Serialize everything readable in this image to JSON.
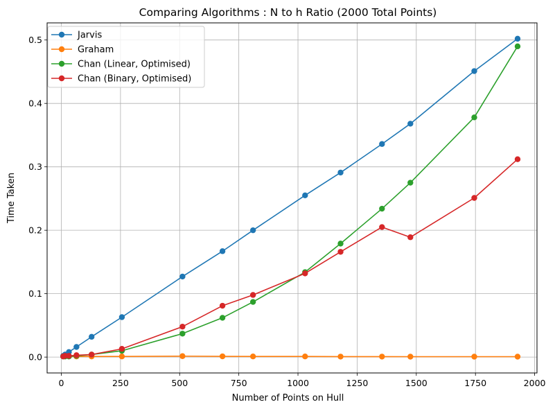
{
  "chart_data": {
    "type": "line",
    "title": "Comparing Algorithms : N to h Ratio (2000 Total Points)",
    "xlabel": "Number of Points on Hull",
    "ylabel": "Time Taken",
    "xlim": [
      -60,
      2010
    ],
    "ylim": [
      -0.025,
      0.527
    ],
    "xticks": [
      0,
      250,
      500,
      750,
      1000,
      1250,
      1500,
      1750,
      2000
    ],
    "yticks": [
      0.0,
      0.1,
      0.2,
      0.3,
      0.4,
      0.5
    ],
    "xtick_labels": [
      "0",
      "250",
      "500",
      "750",
      "1000",
      "1250",
      "1500",
      "1750",
      "2000"
    ],
    "ytick_labels": [
      "0.0",
      "0.1",
      "0.2",
      "0.3",
      "0.4",
      "0.5"
    ],
    "grid": true,
    "legend_position": "top-left",
    "x": [
      8,
      16,
      32,
      64,
      128,
      256,
      512,
      681,
      810,
      1030,
      1180,
      1355,
      1475,
      1745,
      1928
    ],
    "series": [
      {
        "name": "Jarvis",
        "color": "#1f77b4",
        "values": [
          0.002,
          0.004,
          0.008,
          0.016,
          0.032,
          0.063,
          0.127,
          0.167,
          0.2,
          0.255,
          0.291,
          0.336,
          0.368,
          0.451,
          0.502
        ]
      },
      {
        "name": "Graham",
        "color": "#ff7f0e",
        "values": [
          0.001,
          0.001,
          0.001,
          0.001,
          0.001,
          0.001,
          0.0015,
          0.0012,
          0.001,
          0.001,
          0.0008,
          0.0008,
          0.0007,
          0.0007,
          0.0007
        ]
      },
      {
        "name": "Chan (Linear, Optimised)",
        "color": "#2ca02c",
        "values": [
          0.001,
          0.001,
          0.001,
          0.002,
          0.004,
          0.01,
          0.037,
          0.062,
          0.087,
          0.134,
          0.179,
          0.234,
          0.275,
          0.378,
          0.49
        ]
      },
      {
        "name": "Chan (Binary, Optimised)",
        "color": "#d62728",
        "values": [
          0.001,
          0.002,
          0.002,
          0.003,
          0.004,
          0.013,
          0.048,
          0.081,
          0.098,
          0.132,
          0.166,
          0.205,
          0.189,
          0.251,
          0.312
        ]
      }
    ]
  }
}
